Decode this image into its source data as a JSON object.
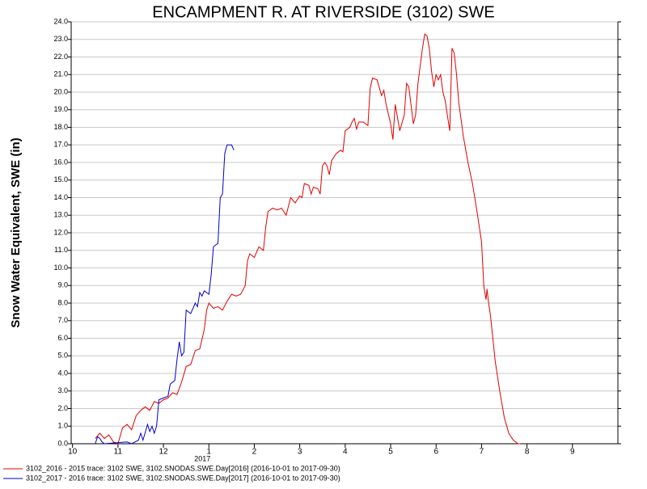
{
  "chart_data": {
    "type": "line",
    "title": "ENCAMPMENT R. AT RIVERSIDE (3102) SWE",
    "y_label": "Snow Water Equivalent, SWE (in)",
    "year_label": "2017",
    "xlim": [
      -0.03,
      12
    ],
    "xticks": [
      {
        "value": 0,
        "label": "10"
      },
      {
        "value": 1,
        "label": "11"
      },
      {
        "value": 2,
        "label": "12"
      },
      {
        "value": 3,
        "label": "1"
      },
      {
        "value": 4,
        "label": "2"
      },
      {
        "value": 5,
        "label": "3"
      },
      {
        "value": 6,
        "label": "4"
      },
      {
        "value": 7,
        "label": "5"
      },
      {
        "value": 8,
        "label": "6"
      },
      {
        "value": 9,
        "label": "7"
      },
      {
        "value": 10,
        "label": "8"
      },
      {
        "value": 11,
        "label": "9"
      }
    ],
    "ylim": [
      0,
      24
    ],
    "yticks": [
      {
        "value": 0,
        "label": "0.0"
      },
      {
        "value": 1,
        "label": "1.0"
      },
      {
        "value": 2,
        "label": "2.0"
      },
      {
        "value": 3,
        "label": "3.0"
      },
      {
        "value": 4,
        "label": "4.0"
      },
      {
        "value": 5,
        "label": "5.0"
      },
      {
        "value": 6,
        "label": "6.0"
      },
      {
        "value": 7,
        "label": "7.0"
      },
      {
        "value": 8,
        "label": "8.0"
      },
      {
        "value": 9,
        "label": "9.0"
      },
      {
        "value": 10,
        "label": "10.0"
      },
      {
        "value": 11,
        "label": "11.0"
      },
      {
        "value": 12,
        "label": "12.0"
      },
      {
        "value": 13,
        "label": "13.0"
      },
      {
        "value": 14,
        "label": "14.0"
      },
      {
        "value": 15,
        "label": "15.0"
      },
      {
        "value": 16,
        "label": "16.0"
      },
      {
        "value": 17,
        "label": "17.0"
      },
      {
        "value": 18,
        "label": "18.0"
      },
      {
        "value": 19,
        "label": "19.0"
      },
      {
        "value": 20,
        "label": "20.0"
      },
      {
        "value": 21,
        "label": "21.0"
      },
      {
        "value": 22,
        "label": "22.0"
      },
      {
        "value": 23,
        "label": "23.0"
      },
      {
        "value": 24,
        "label": "24.0"
      }
    ],
    "grid": true,
    "series": [
      {
        "name": "3102_2016 - 2015 trace: 3102 SWE, 3102.SNODAS.SWE.Day[2016] (2016-10-01 to 2017-09-30)",
        "color": "#e00000",
        "x": [
          0.5,
          0.6,
          0.7,
          0.8,
          0.9,
          1.0,
          1.1,
          1.2,
          1.3,
          1.4,
          1.5,
          1.6,
          1.7,
          1.8,
          1.9,
          2.0,
          2.1,
          2.2,
          2.3,
          2.4,
          2.5,
          2.6,
          2.7,
          2.8,
          2.9,
          2.95,
          3.0,
          3.1,
          3.2,
          3.3,
          3.4,
          3.5,
          3.6,
          3.7,
          3.8,
          3.85,
          3.9,
          4.0,
          4.1,
          4.2,
          4.25,
          4.3,
          4.4,
          4.5,
          4.6,
          4.7,
          4.75,
          4.8,
          4.9,
          5.0,
          5.05,
          5.1,
          5.2,
          5.25,
          5.3,
          5.4,
          5.45,
          5.5,
          5.55,
          5.6,
          5.65,
          5.7,
          5.8,
          5.9,
          5.95,
          6.0,
          6.1,
          6.15,
          6.2,
          6.25,
          6.3,
          6.4,
          6.5,
          6.55,
          6.6,
          6.7,
          6.8,
          6.85,
          6.9,
          7.0,
          7.05,
          7.1,
          7.2,
          7.3,
          7.35,
          7.4,
          7.5,
          7.55,
          7.6,
          7.7,
          7.75,
          7.8,
          7.85,
          7.9,
          7.95,
          8.0,
          8.05,
          8.1,
          8.15,
          8.2,
          8.3,
          8.35,
          8.4,
          8.45,
          8.5,
          8.6,
          8.7,
          8.8,
          8.9,
          9.0,
          9.05,
          9.1,
          9.12,
          9.15,
          9.2,
          9.3,
          9.4,
          9.5,
          9.6,
          9.7,
          9.8,
          9.85
        ],
        "values": [
          0.3,
          0.6,
          0.3,
          0.5,
          0.1,
          0.0,
          0.9,
          1.1,
          0.8,
          1.6,
          1.9,
          2.1,
          1.9,
          2.4,
          2.3,
          2.5,
          2.6,
          2.9,
          2.8,
          3.5,
          4.4,
          4.5,
          5.3,
          5.4,
          6.5,
          7.6,
          8.0,
          7.7,
          7.8,
          7.6,
          8.1,
          8.5,
          8.4,
          8.5,
          9.0,
          10.4,
          10.8,
          10.6,
          11.2,
          11.0,
          12.3,
          13.2,
          13.4,
          13.3,
          13.4,
          13.0,
          13.5,
          14.0,
          13.7,
          14.1,
          14.0,
          14.8,
          14.7,
          14.2,
          14.6,
          14.5,
          14.2,
          15.8,
          16.0,
          15.8,
          15.3,
          16.1,
          16.5,
          16.7,
          16.6,
          17.8,
          18.0,
          18.3,
          18.5,
          17.9,
          18.3,
          18.3,
          18.1,
          20.2,
          20.8,
          20.7,
          19.8,
          20.1,
          19.3,
          18.2,
          17.3,
          19.3,
          17.8,
          18.7,
          20.5,
          20.3,
          18.2,
          18.7,
          20.5,
          22.5,
          23.3,
          23.2,
          22.5,
          21.2,
          20.3,
          21.0,
          20.7,
          21.0,
          20.0,
          19.5,
          17.8,
          22.5,
          22.2,
          21.0,
          19.4,
          17.5,
          16.0,
          14.8,
          13.2,
          11.5,
          9.0,
          8.2,
          8.8,
          8.1,
          7.2,
          4.7,
          3.0,
          1.5,
          0.6,
          0.2,
          0.0,
          0.0
        ]
      },
      {
        "name": "3102_2017 - 2016 trace: 3102 SWE, 3102.SNODAS.SWE.Day[2017] (2016-10-01 to 2017-09-30)",
        "color": "#0000d0",
        "x": [
          0.5,
          0.55,
          0.6,
          0.65,
          0.7,
          1.2,
          1.3,
          1.45,
          1.5,
          1.55,
          1.65,
          1.7,
          1.75,
          1.8,
          1.85,
          1.9,
          2.0,
          2.1,
          2.15,
          2.25,
          2.3,
          2.35,
          2.4,
          2.45,
          2.5,
          2.6,
          2.7,
          2.75,
          2.8,
          2.85,
          2.9,
          3.0,
          3.05,
          3.1,
          3.2,
          3.25,
          3.3,
          3.35,
          3.4,
          3.5,
          3.55
        ],
        "values": [
          0.0,
          0.4,
          0.3,
          0.1,
          0.0,
          0.1,
          0.0,
          0.2,
          0.6,
          0.2,
          1.1,
          0.7,
          1.0,
          0.6,
          1.0,
          2.5,
          2.6,
          2.7,
          3.4,
          3.6,
          4.8,
          5.8,
          5.0,
          5.2,
          7.6,
          7.4,
          8.0,
          7.8,
          8.6,
          8.4,
          8.7,
          8.5,
          9.6,
          11.2,
          11.4,
          14.0,
          14.2,
          16.5,
          17.0,
          17.0,
          16.7
        ]
      }
    ]
  }
}
